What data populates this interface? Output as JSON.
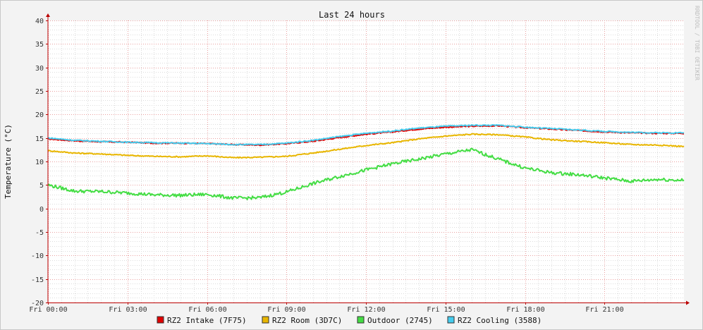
{
  "chart_data": {
    "type": "line",
    "title": "Last 24 hours",
    "ylabel": "Temperature (°C)",
    "watermark": "RRDTOOL / TOBI OETIKER",
    "ylim": [
      -20,
      40
    ],
    "y_ticks": [
      40,
      35,
      30,
      25,
      20,
      15,
      10,
      5,
      0,
      -5,
      -10,
      -15,
      -20
    ],
    "x_range_hours": [
      0,
      24
    ],
    "x_tick_hours": [
      0,
      3,
      6,
      9,
      12,
      15,
      18,
      21
    ],
    "x_tick_labels": [
      "Fri 00:00",
      "Fri 03:00",
      "Fri 06:00",
      "Fri 09:00",
      "Fri 12:00",
      "Fri 15:00",
      "Fri 18:00",
      "Fri 21:00"
    ],
    "grid": true,
    "legend_position": "bottom",
    "x_hours": [
      0,
      1,
      2,
      3,
      4,
      5,
      6,
      7,
      8,
      9,
      10,
      11,
      12,
      13,
      14,
      15,
      16,
      17,
      18,
      19,
      20,
      21,
      22,
      23,
      24
    ],
    "series": [
      {
        "name": "RZ2 Intake (7F75)",
        "color": "#e00000",
        "values": [
          14.8,
          14.4,
          14.2,
          14.1,
          13.9,
          13.9,
          13.8,
          13.6,
          13.5,
          13.8,
          14.3,
          15.1,
          15.8,
          16.3,
          16.9,
          17.3,
          17.5,
          17.6,
          17.2,
          16.9,
          16.6,
          16.3,
          16.1,
          16.0,
          16.0
        ]
      },
      {
        "name": "RZ2 Room (3D7C)",
        "color": "#e8b600",
        "values": [
          12.3,
          11.8,
          11.6,
          11.3,
          11.1,
          11.0,
          11.2,
          10.8,
          10.9,
          11.1,
          11.8,
          12.6,
          13.4,
          14.0,
          14.8,
          15.4,
          15.8,
          15.7,
          15.2,
          14.6,
          14.3,
          14.0,
          13.6,
          13.5,
          13.2
        ]
      },
      {
        "name": "Outdoor (2745)",
        "color": "#44dd44",
        "values": [
          5.0,
          3.7,
          3.6,
          3.3,
          2.9,
          2.8,
          3.0,
          2.2,
          2.3,
          3.5,
          5.3,
          6.8,
          8.2,
          9.5,
          10.5,
          11.6,
          12.5,
          10.5,
          8.6,
          7.6,
          7.2,
          6.5,
          5.8,
          6.2,
          6.0
        ]
      },
      {
        "name": "RZ2 Cooling (3588)",
        "color": "#44ccee",
        "values": [
          15.0,
          14.5,
          14.3,
          14.1,
          14.0,
          13.9,
          13.8,
          13.6,
          13.6,
          13.9,
          14.5,
          15.3,
          16.0,
          16.5,
          17.1,
          17.5,
          17.7,
          17.7,
          17.3,
          17.0,
          16.7,
          16.4,
          16.2,
          16.1,
          16.1
        ]
      }
    ]
  }
}
